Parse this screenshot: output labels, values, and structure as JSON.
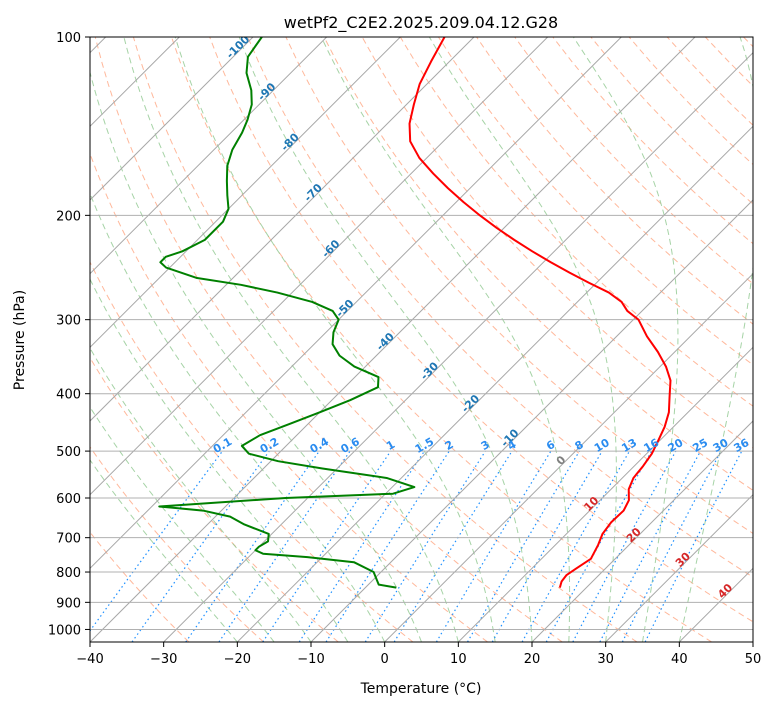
{
  "chart_data": {
    "type": "line",
    "title": "wetPf2_C2E2.2025.209.04.12.G28",
    "xlabel": "Temperature (°C)",
    "ylabel": "Pressure (hPa)",
    "xlim": [
      -40,
      50
    ],
    "ylim": [
      1050,
      100
    ],
    "y_scale": "log",
    "grid": true,
    "x_ticks": [
      "−40",
      "−30",
      "−20",
      "−10",
      "0",
      "10",
      "20",
      "30",
      "40",
      "50"
    ],
    "y_ticks": [
      "100",
      "200",
      "300",
      "400",
      "500",
      "600",
      "700",
      "800",
      "900",
      "1000"
    ],
    "colors": {
      "temperature": "#ff0000",
      "dewpoint": "#008000",
      "dry_adiabat": "#ffa07a",
      "moist_adiabat": "#90c890",
      "mixing_ratio": "#1e90ff",
      "isotherm": "#808080",
      "isotherm_label": "#1f77b4",
      "isotherm_label_warm": "#d62728"
    },
    "series": [
      {
        "key": "temperature",
        "points": [
          [
            16.4,
            850
          ],
          [
            15.8,
            830
          ],
          [
            15.6,
            810
          ],
          [
            16.0,
            790
          ],
          [
            16.7,
            760
          ],
          [
            15.8,
            720
          ],
          [
            14.9,
            690
          ],
          [
            14.5,
            660
          ],
          [
            14.6,
            630
          ],
          [
            13.9,
            605
          ],
          [
            12.4,
            580
          ],
          [
            11.5,
            555
          ],
          [
            11.2,
            530
          ],
          [
            10.7,
            505
          ],
          [
            9.8,
            480
          ],
          [
            8.8,
            455
          ],
          [
            7.4,
            430
          ],
          [
            5.4,
            405
          ],
          [
            3.3,
            380
          ],
          [
            0.8,
            360
          ],
          [
            -2.3,
            340
          ],
          [
            -5.9,
            320
          ],
          [
            -9.3,
            300
          ],
          [
            -12.0,
            290
          ],
          [
            -14.0,
            280
          ],
          [
            -17.0,
            270
          ],
          [
            -21.0,
            260
          ],
          [
            -25.0,
            250
          ],
          [
            -29.0,
            240
          ],
          [
            -33.0,
            230
          ],
          [
            -37.0,
            220
          ],
          [
            -41.0,
            210
          ],
          [
            -45.0,
            200
          ],
          [
            -49.0,
            190
          ],
          [
            -53.0,
            180
          ],
          [
            -57.0,
            170
          ],
          [
            -61.0,
            160
          ],
          [
            -64.5,
            150
          ],
          [
            -67.0,
            140
          ],
          [
            -69.0,
            130
          ],
          [
            -71.0,
            120
          ],
          [
            -72.5,
            110
          ],
          [
            -74.0,
            100
          ]
        ]
      },
      {
        "key": "dewpoint",
        "points": [
          [
            -5.8,
            850
          ],
          [
            -8.6,
            840
          ],
          [
            -11.0,
            800
          ],
          [
            -15.0,
            770
          ],
          [
            -22.0,
            755
          ],
          [
            -28.5,
            745
          ],
          [
            -30.0,
            735
          ],
          [
            -30.0,
            725
          ],
          [
            -29.5,
            710
          ],
          [
            -30.4,
            690
          ],
          [
            -35.0,
            665
          ],
          [
            -38.0,
            645
          ],
          [
            -42.5,
            630
          ],
          [
            -49.0,
            620
          ],
          [
            -33.0,
            600
          ],
          [
            -19.0,
            590
          ],
          [
            -17.0,
            575
          ],
          [
            -22.0,
            555
          ],
          [
            -32.0,
            535
          ],
          [
            -39.0,
            520
          ],
          [
            -44.0,
            505
          ],
          [
            -46.0,
            490
          ],
          [
            -45.0,
            470
          ],
          [
            -42.5,
            450
          ],
          [
            -40.0,
            430
          ],
          [
            -37.5,
            410
          ],
          [
            -35.5,
            390
          ],
          [
            -36.8,
            375
          ],
          [
            -41.5,
            360
          ],
          [
            -45.0,
            345
          ],
          [
            -47.5,
            330
          ],
          [
            -49.0,
            315
          ],
          [
            -50.0,
            300
          ],
          [
            -52.0,
            290
          ],
          [
            -56.0,
            280
          ],
          [
            -62.0,
            270
          ],
          [
            -68.0,
            262
          ],
          [
            -75.0,
            255
          ],
          [
            -80.5,
            245
          ],
          [
            -82.0,
            240
          ],
          [
            -82.0,
            235
          ],
          [
            -80.5,
            230
          ],
          [
            -79.0,
            220
          ],
          [
            -79.0,
            205
          ],
          [
            -80.0,
            195
          ],
          [
            -82.0,
            185
          ],
          [
            -84.0,
            175
          ],
          [
            -86.0,
            165
          ],
          [
            -87.5,
            155
          ],
          [
            -88.5,
            145
          ],
          [
            -89.5,
            138
          ],
          [
            -91.0,
            130
          ],
          [
            -93.0,
            123
          ],
          [
            -96.0,
            115
          ],
          [
            -98.0,
            108
          ],
          [
            -98.8,
            100
          ]
        ]
      }
    ],
    "isotherm_labels_cold": [
      "-100",
      "-90",
      "-80",
      "-70",
      "-60",
      "-50",
      "-40",
      "-30",
      "-20",
      "-10",
      "0"
    ],
    "isotherm_labels_warm": [
      "10",
      "20",
      "30",
      "40"
    ],
    "mixing_ratio_labels": [
      "0.1",
      "0.2",
      "0.4",
      "0.6",
      "1",
      "1.5",
      "2",
      "3",
      "4",
      "6",
      "8",
      "10",
      "13",
      "16",
      "20",
      "25",
      "30",
      "36"
    ]
  }
}
